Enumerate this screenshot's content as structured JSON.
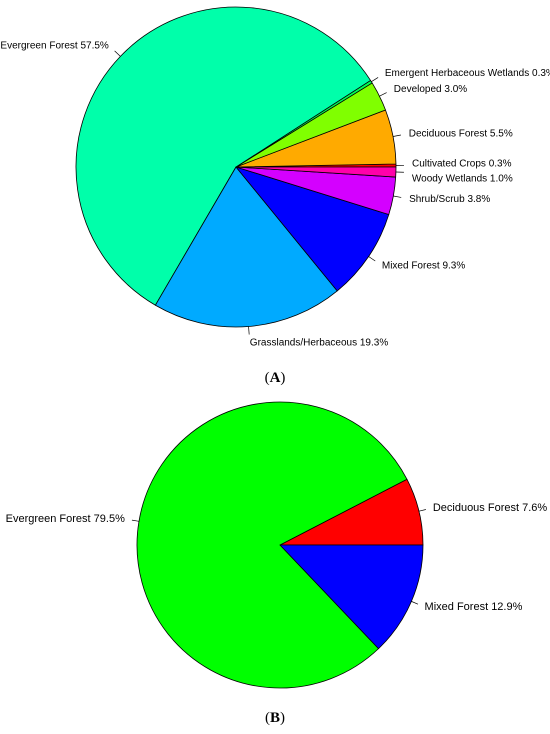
{
  "chart_data": [
    {
      "type": "pie",
      "caption_letter": "A",
      "slices": [
        {
          "label": "Cultivated Crops",
          "value": 0.3,
          "display": "0.3%",
          "color": "#ff0000"
        },
        {
          "label": "Deciduous Forest",
          "value": 5.5,
          "display": "5.5%",
          "color": "#ffaa00"
        },
        {
          "label": "Developed",
          "value": 3.0,
          "display": "3.0%",
          "color": "#80ff00"
        },
        {
          "label": "Emergent Herbaceous Wetlands",
          "value": 0.3,
          "display": "0.3%",
          "color": "#00ff55"
        },
        {
          "label": "Evergreen Forest",
          "value": 57.5,
          "display": "57.5%",
          "color": "#00ffaa"
        },
        {
          "label": "Grasslands/Herbaceous",
          "value": 19.3,
          "display": "19.3%",
          "color": "#00aaff"
        },
        {
          "label": "Mixed Forest",
          "value": 9.3,
          "display": "9.3%",
          "color": "#0000ff"
        },
        {
          "label": "Shrub/Scrub",
          "value": 3.8,
          "display": "3.8%",
          "color": "#d400ff"
        },
        {
          "label": "Woody Wetlands",
          "value": 1.0,
          "display": "1.0%",
          "color": "#ff00aa"
        }
      ]
    },
    {
      "type": "pie",
      "caption_letter": "B",
      "slices": [
        {
          "label": "Deciduous Forest",
          "value": 7.6,
          "display": "7.6%",
          "color": "#ff0000"
        },
        {
          "label": "Evergreen Forest",
          "value": 79.5,
          "display": "79.5%",
          "color": "#00ff00"
        },
        {
          "label": "Mixed Forest",
          "value": 12.9,
          "display": "12.9%",
          "color": "#0000ff"
        }
      ]
    }
  ]
}
